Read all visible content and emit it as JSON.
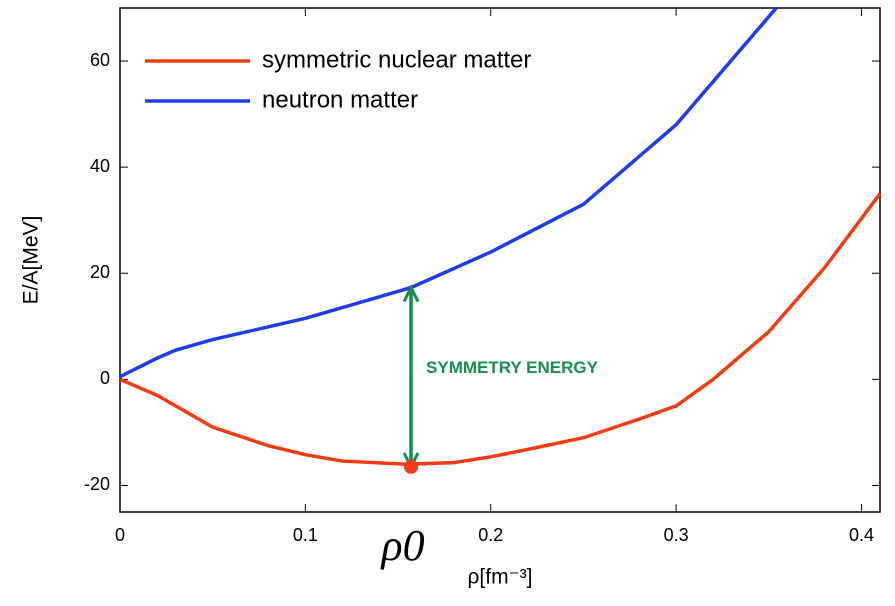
{
  "chart_data": {
    "type": "line",
    "xlabel": "ρ[fm⁻³]",
    "ylabel": "E/A[MeV]",
    "xlim": [
      0,
      0.41
    ],
    "ylim": [
      -25,
      70
    ],
    "xticks": [
      0,
      0.1,
      0.2,
      0.3,
      0.4
    ],
    "yticks": [
      -20,
      0,
      20,
      40,
      60
    ],
    "legend": "upper left",
    "series": [
      {
        "name": "symmetric nuclear matter",
        "color": "#f03c14",
        "x": [
          0,
          0.02,
          0.03,
          0.05,
          0.08,
          0.1,
          0.12,
          0.155,
          0.18,
          0.2,
          0.22,
          0.25,
          0.28,
          0.3,
          0.32,
          0.35,
          0.38,
          0.41
        ],
        "values": [
          0,
          -3,
          -5,
          -9,
          -12.5,
          -14.2,
          -15.4,
          -16,
          -15.7,
          -14.6,
          -13.2,
          -11,
          -7.5,
          -5,
          0,
          9,
          21,
          35
        ]
      },
      {
        "name": "neutron matter",
        "color": "#1e3ceb",
        "x": [
          0,
          0.02,
          0.03,
          0.05,
          0.1,
          0.157,
          0.2,
          0.25,
          0.3,
          0.354
        ],
        "values": [
          0.5,
          4,
          5.5,
          7.5,
          11.5,
          17.3,
          24,
          33,
          48,
          70
        ]
      }
    ],
    "arrow": {
      "x": 0.157,
      "y": [
        -16.5,
        17.3
      ],
      "color": "#1a8c4e",
      "label": "SYMMETRY ENERGY"
    },
    "marker": {
      "x": 0.157,
      "y": -16.5,
      "color": "#f03c14",
      "label": "ρ0"
    }
  }
}
